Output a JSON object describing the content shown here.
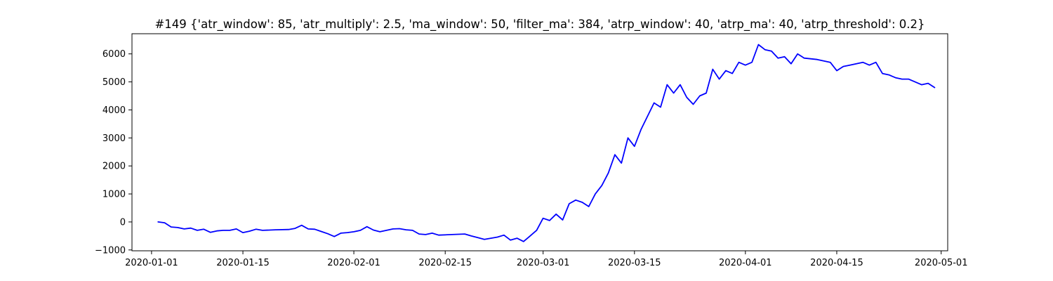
{
  "chart_data": {
    "type": "line",
    "title": "#149 {'atr_window': 85, 'atr_multiply': 2.5, 'ma_window': 50, 'filter_ma': 384, 'atrp_window': 40, 'atrp_ma': 40, 'atrp_threshold': 0.2}",
    "xlabel": "",
    "ylabel": "",
    "grid": false,
    "xlim": [
      "2019-12-29",
      "2020-05-02"
    ],
    "ylim": [
      -1030,
      6720
    ],
    "x_ticks": [
      "2020-01-01",
      "2020-01-15",
      "2020-02-01",
      "2020-02-15",
      "2020-03-01",
      "2020-03-15",
      "2020-04-01",
      "2020-04-15",
      "2020-05-01"
    ],
    "y_ticks": [
      -1000,
      0,
      1000,
      2000,
      3000,
      4000,
      5000,
      6000
    ],
    "y_tick_labels": [
      "−1000",
      "0",
      "1000",
      "2000",
      "3000",
      "4000",
      "5000",
      "6000"
    ],
    "series": [
      {
        "color": "#0000ff",
        "points": [
          [
            "2020-01-02",
            0
          ],
          [
            "2020-01-03",
            -30
          ],
          [
            "2020-01-04",
            -180
          ],
          [
            "2020-01-05",
            -200
          ],
          [
            "2020-01-06",
            -250
          ],
          [
            "2020-01-07",
            -220
          ],
          [
            "2020-01-08",
            -300
          ],
          [
            "2020-01-09",
            -260
          ],
          [
            "2020-01-10",
            -370
          ],
          [
            "2020-01-11",
            -320
          ],
          [
            "2020-01-12",
            -300
          ],
          [
            "2020-01-13",
            -300
          ],
          [
            "2020-01-14",
            -250
          ],
          [
            "2020-01-15",
            -380
          ],
          [
            "2020-01-16",
            -330
          ],
          [
            "2020-01-17",
            -260
          ],
          [
            "2020-01-18",
            -300
          ],
          [
            "2020-01-20",
            -280
          ],
          [
            "2020-01-22",
            -270
          ],
          [
            "2020-01-23",
            -230
          ],
          [
            "2020-01-24",
            -120
          ],
          [
            "2020-01-25",
            -250
          ],
          [
            "2020-01-26",
            -260
          ],
          [
            "2020-01-27",
            -340
          ],
          [
            "2020-01-28",
            -420
          ],
          [
            "2020-01-29",
            -520
          ],
          [
            "2020-01-30",
            -400
          ],
          [
            "2020-01-31",
            -380
          ],
          [
            "2020-02-01",
            -350
          ],
          [
            "2020-02-02",
            -300
          ],
          [
            "2020-02-03",
            -170
          ],
          [
            "2020-02-04",
            -290
          ],
          [
            "2020-02-05",
            -350
          ],
          [
            "2020-02-06",
            -300
          ],
          [
            "2020-02-07",
            -250
          ],
          [
            "2020-02-08",
            -240
          ],
          [
            "2020-02-09",
            -280
          ],
          [
            "2020-02-10",
            -300
          ],
          [
            "2020-02-11",
            -430
          ],
          [
            "2020-02-12",
            -450
          ],
          [
            "2020-02-13",
            -400
          ],
          [
            "2020-02-14",
            -470
          ],
          [
            "2020-02-16",
            -450
          ],
          [
            "2020-02-18",
            -430
          ],
          [
            "2020-02-19",
            -500
          ],
          [
            "2020-02-20",
            -560
          ],
          [
            "2020-02-21",
            -620
          ],
          [
            "2020-02-22",
            -580
          ],
          [
            "2020-02-23",
            -540
          ],
          [
            "2020-02-24",
            -470
          ],
          [
            "2020-02-25",
            -650
          ],
          [
            "2020-02-26",
            -580
          ],
          [
            "2020-02-27",
            -700
          ],
          [
            "2020-02-28",
            -500
          ],
          [
            "2020-02-29",
            -300
          ],
          [
            "2020-03-01",
            130
          ],
          [
            "2020-03-02",
            50
          ],
          [
            "2020-03-03",
            280
          ],
          [
            "2020-03-04",
            70
          ],
          [
            "2020-03-05",
            650
          ],
          [
            "2020-03-06",
            780
          ],
          [
            "2020-03-07",
            700
          ],
          [
            "2020-03-08",
            550
          ],
          [
            "2020-03-09",
            1000
          ],
          [
            "2020-03-10",
            1300
          ],
          [
            "2020-03-11",
            1750
          ],
          [
            "2020-03-12",
            2400
          ],
          [
            "2020-03-13",
            2100
          ],
          [
            "2020-03-14",
            3000
          ],
          [
            "2020-03-15",
            2700
          ],
          [
            "2020-03-16",
            3300
          ],
          [
            "2020-03-18",
            4250
          ],
          [
            "2020-03-19",
            4100
          ],
          [
            "2020-03-20",
            4900
          ],
          [
            "2020-03-21",
            4600
          ],
          [
            "2020-03-22",
            4900
          ],
          [
            "2020-03-23",
            4450
          ],
          [
            "2020-03-24",
            4200
          ],
          [
            "2020-03-25",
            4500
          ],
          [
            "2020-03-26",
            4600
          ],
          [
            "2020-03-27",
            5450
          ],
          [
            "2020-03-28",
            5100
          ],
          [
            "2020-03-29",
            5400
          ],
          [
            "2020-03-30",
            5300
          ],
          [
            "2020-03-31",
            5700
          ],
          [
            "2020-04-01",
            5600
          ],
          [
            "2020-04-02",
            5700
          ],
          [
            "2020-04-03",
            6330
          ],
          [
            "2020-04-04",
            6150
          ],
          [
            "2020-04-05",
            6100
          ],
          [
            "2020-04-06",
            5850
          ],
          [
            "2020-04-07",
            5900
          ],
          [
            "2020-04-08",
            5650
          ],
          [
            "2020-04-09",
            6000
          ],
          [
            "2020-04-10",
            5850
          ],
          [
            "2020-04-12",
            5800
          ],
          [
            "2020-04-14",
            5700
          ],
          [
            "2020-04-15",
            5400
          ],
          [
            "2020-04-16",
            5550
          ],
          [
            "2020-04-17",
            5600
          ],
          [
            "2020-04-18",
            5650
          ],
          [
            "2020-04-19",
            5700
          ],
          [
            "2020-04-20",
            5600
          ],
          [
            "2020-04-21",
            5700
          ],
          [
            "2020-04-22",
            5300
          ],
          [
            "2020-04-23",
            5250
          ],
          [
            "2020-04-24",
            5150
          ],
          [
            "2020-04-25",
            5100
          ],
          [
            "2020-04-26",
            5100
          ],
          [
            "2020-04-27",
            5000
          ],
          [
            "2020-04-28",
            4900
          ],
          [
            "2020-04-29",
            4950
          ],
          [
            "2020-04-30",
            4800
          ]
        ]
      }
    ]
  }
}
